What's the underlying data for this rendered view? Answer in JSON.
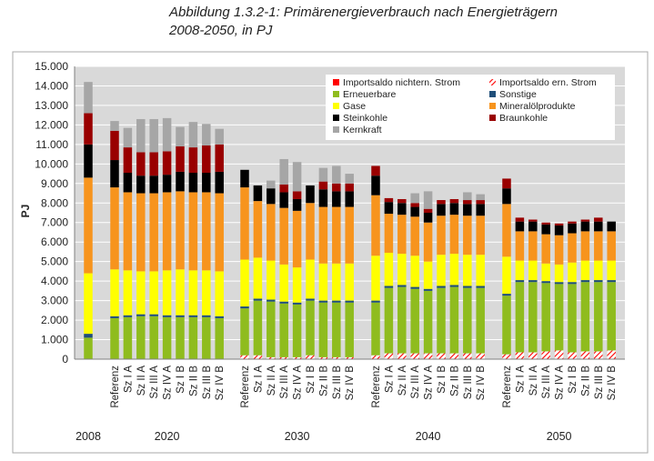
{
  "title": {
    "line1": "Abbildung 1.3.2-1: Primärenergieverbrauch nach Energieträgern",
    "line2": "2008-2050, in PJ"
  },
  "chart_data": {
    "type": "bar",
    "stacked": true,
    "ylabel": "PJ",
    "ylim": [
      0,
      15000
    ],
    "yticks": [
      "0",
      "1.000",
      "2.000",
      "3.000",
      "4.000",
      "5.000",
      "6.000",
      "7.000",
      "8.000",
      "9.000",
      "10.000",
      "11.000",
      "12.000",
      "13.000",
      "14.000",
      "15.000"
    ],
    "grid": true,
    "legend_position": "top-right",
    "groups": [
      {
        "label": "2008",
        "categories": [
          ""
        ]
      },
      {
        "label": "2020",
        "categories": [
          "Referenz",
          "Sz I A",
          "Sz II A",
          "Sz III A",
          "Sz IV A",
          "Sz I B",
          "Sz II B",
          "Sz III B",
          "Sz IV B"
        ]
      },
      {
        "label": "2030",
        "categories": [
          "Referenz",
          "Sz I A",
          "Sz II A",
          "Sz III A",
          "Sz IV A",
          "Sz I B",
          "Sz II B",
          "Sz III B",
          "Sz IV B"
        ]
      },
      {
        "label": "2040",
        "categories": [
          "Referenz",
          "Sz I A",
          "Sz II A",
          "Sz III A",
          "Sz IV A",
          "Sz I B",
          "Sz II B",
          "Sz III B",
          "Sz IV B"
        ]
      },
      {
        "label": "2050",
        "categories": [
          "Referenz",
          "Sz I A",
          "Sz II A",
          "Sz III A",
          "Sz IV A",
          "Sz I B",
          "Sz II B",
          "Sz III B",
          "Sz IV B"
        ]
      }
    ],
    "series": [
      {
        "name": "Importsaldo nichtern. Strom",
        "color": "#ff0000",
        "pattern": "solid",
        "values": [
          0,
          0,
          0,
          0,
          0,
          0,
          0,
          0,
          0,
          0,
          0,
          0,
          0,
          0,
          0,
          0,
          0,
          0,
          0,
          0,
          0,
          0,
          0,
          0,
          0,
          0,
          0,
          0,
          0,
          0,
          0,
          0,
          0,
          0,
          0,
          0,
          0
        ]
      },
      {
        "name": "Importsaldo ern. Strom",
        "color": "#ff0000",
        "pattern": "hatch",
        "values": [
          0,
          0,
          0,
          0,
          0,
          0,
          0,
          0,
          0,
          0,
          200,
          200,
          100,
          100,
          100,
          200,
          100,
          100,
          100,
          200,
          300,
          300,
          300,
          300,
          300,
          300,
          300,
          300,
          250,
          350,
          350,
          400,
          450,
          350,
          400,
          400,
          450
        ]
      },
      {
        "name": "Erneuerbare",
        "color": "#8fbc1e",
        "pattern": "solid",
        "values": [
          1100,
          2100,
          2150,
          2200,
          2200,
          2150,
          2150,
          2150,
          2150,
          2100,
          2400,
          2800,
          2850,
          2750,
          2700,
          2800,
          2800,
          2800,
          2800,
          2700,
          3350,
          3400,
          3300,
          3200,
          3350,
          3400,
          3350,
          3350,
          3000,
          3600,
          3600,
          3500,
          3400,
          3500,
          3550,
          3550,
          3500
        ]
      },
      {
        "name": "Sonstige",
        "color": "#1f4e79",
        "pattern": "solid",
        "values": [
          200,
          100,
          100,
          100,
          100,
          100,
          100,
          100,
          100,
          100,
          100,
          100,
          100,
          100,
          100,
          100,
          100,
          100,
          100,
          100,
          100,
          100,
          100,
          100,
          100,
          100,
          100,
          100,
          100,
          100,
          100,
          100,
          100,
          100,
          100,
          100,
          100
        ]
      },
      {
        "name": "Gase",
        "color": "#ffff00",
        "pattern": "solid",
        "values": [
          3100,
          2400,
          2300,
          2200,
          2200,
          2300,
          2350,
          2300,
          2300,
          2300,
          2400,
          2100,
          2000,
          1900,
          1800,
          2000,
          1900,
          1900,
          1900,
          2300,
          1700,
          1600,
          1600,
          1400,
          1600,
          1600,
          1600,
          1600,
          1900,
          1000,
          1000,
          900,
          900,
          1000,
          1000,
          1000,
          1000
        ]
      },
      {
        "name": "Mineralölprodukte",
        "color": "#f7941d",
        "pattern": "solid",
        "values": [
          4900,
          4200,
          4000,
          4000,
          4000,
          4000,
          4000,
          4000,
          4000,
          4000,
          3700,
          2900,
          2900,
          2900,
          2900,
          2900,
          2900,
          2900,
          2900,
          3100,
          2000,
          2000,
          2000,
          2000,
          2000,
          2000,
          2000,
          2000,
          2700,
          1500,
          1500,
          1500,
          1500,
          1500,
          1500,
          1500,
          1500
        ]
      },
      {
        "name": "Steinkohle",
        "color": "#000000",
        "pattern": "solid",
        "values": [
          1700,
          1400,
          1000,
          900,
          900,
          900,
          1000,
          1000,
          1000,
          1100,
          900,
          800,
          800,
          800,
          600,
          900,
          900,
          800,
          800,
          1000,
          600,
          600,
          500,
          500,
          600,
          600,
          600,
          600,
          800,
          500,
          500,
          500,
          500,
          500,
          500,
          500,
          500
        ]
      },
      {
        "name": "Braunkohle",
        "color": "#990000",
        "pattern": "solid",
        "values": [
          1600,
          1500,
          1300,
          1200,
          1200,
          1200,
          1300,
          1300,
          1400,
          1400,
          0,
          0,
          0,
          400,
          400,
          0,
          400,
          400,
          400,
          500,
          200,
          200,
          200,
          200,
          200,
          200,
          200,
          200,
          500,
          200,
          100,
          100,
          100,
          100,
          100,
          200,
          0
        ]
      },
      {
        "name": "Kernkraft",
        "color": "#a6a6a6",
        "pattern": "solid",
        "values": [
          1600,
          500,
          1000,
          1700,
          1700,
          1700,
          1000,
          1300,
          1100,
          800,
          0,
          0,
          400,
          1300,
          1500,
          0,
          700,
          900,
          500,
          0,
          0,
          0,
          500,
          900,
          0,
          0,
          400,
          300,
          0,
          0,
          0,
          0,
          0,
          0,
          0,
          0,
          0
        ]
      }
    ]
  }
}
